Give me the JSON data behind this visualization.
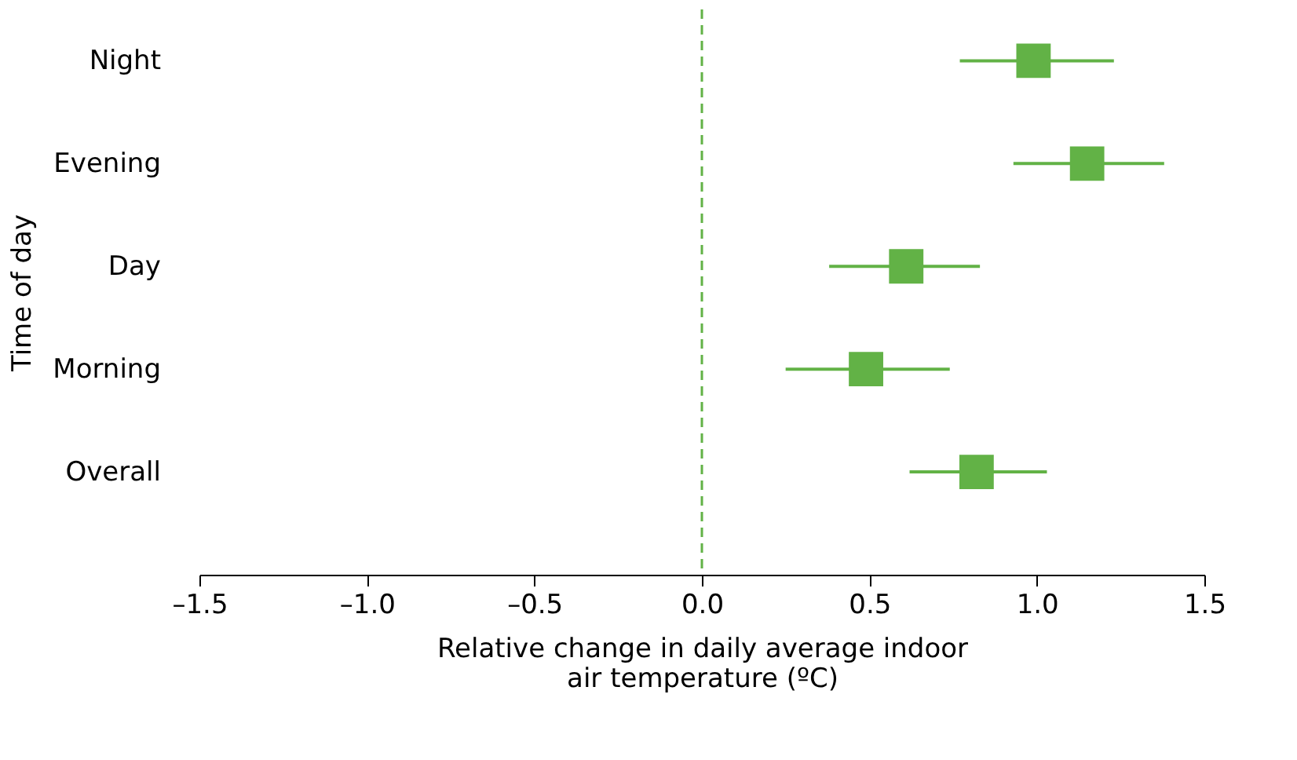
{
  "chart_data": {
    "type": "scatter",
    "orientation": "horizontal",
    "xlabel": "Relative change in daily average indoor air temperature (ºC)",
    "ylabel": "Time of day",
    "categories": [
      "Night",
      "Evening",
      "Day",
      "Morning",
      "Overall"
    ],
    "series": [
      {
        "color": "#62b246",
        "values": [
          0.99,
          1.15,
          0.61,
          0.49,
          0.82
        ],
        "errors": [
          [
            0.77,
            1.23
          ],
          [
            0.93,
            1.38
          ],
          [
            0.38,
            0.83
          ],
          [
            0.25,
            0.74
          ],
          [
            0.62,
            1.03
          ]
        ]
      }
    ],
    "xlim": [
      -1.5,
      1.5
    ],
    "xticks": [
      {
        "value": -1.5,
        "label": "–1.5"
      },
      {
        "value": -1,
        "label": "–1.0"
      },
      {
        "value": -0.5,
        "label": "–0.5"
      },
      {
        "value": 0,
        "label": "0.0"
      },
      0.5,
      {
        "value": 1,
        "label": "1.0"
      },
      1.5
    ],
    "ref_lines": [
      {
        "axis": "x",
        "value": 0,
        "color": "#62b246",
        "line_style": "dashed"
      }
    ],
    "marker": "square",
    "grid": false
  }
}
